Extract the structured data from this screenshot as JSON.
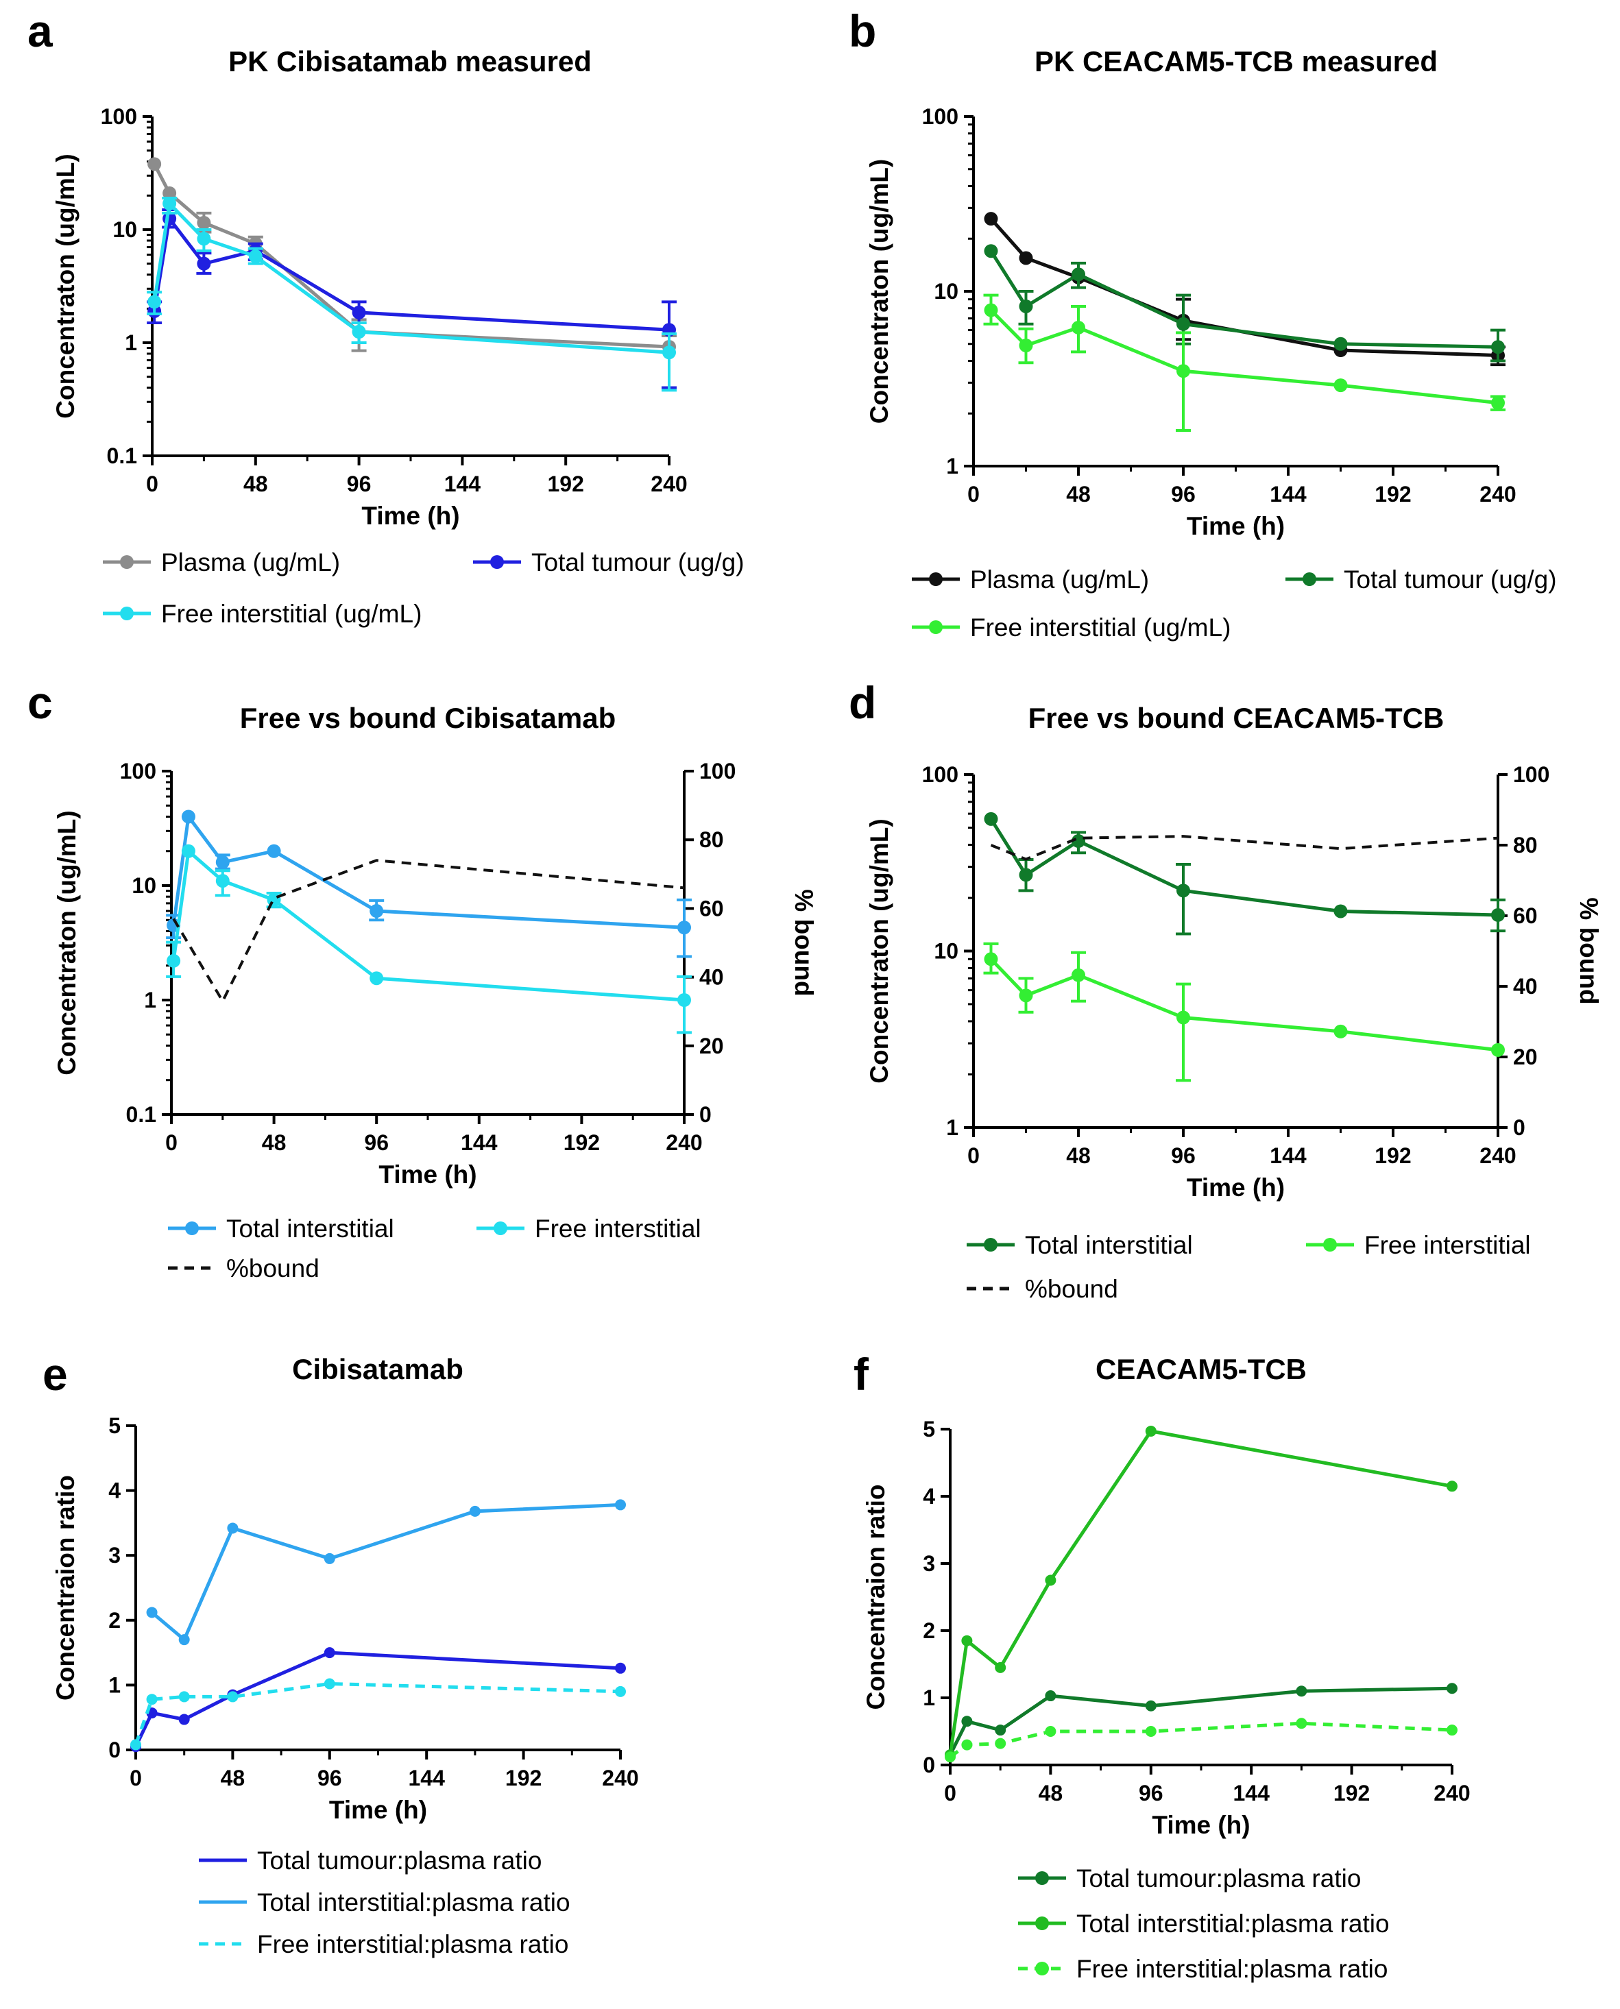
{
  "figure": {
    "panels_letters": [
      "a",
      "b",
      "c",
      "d",
      "e",
      "f"
    ]
  },
  "chart_data": [
    {
      "id": "a",
      "letter": "a",
      "type": "line",
      "title": "PK Cibisatamab measured",
      "xlabel": "Time (h)",
      "ylabel": "Concentraton (ug/mL)",
      "yscale": "log",
      "ylim": [
        0.1,
        100
      ],
      "xlim": [
        0,
        240
      ],
      "xticks": [
        0,
        48,
        96,
        144,
        192,
        240
      ],
      "yticks": [
        0.1,
        1,
        10,
        100
      ],
      "ytick_labels": [
        "0.1",
        "1",
        "10",
        "100"
      ],
      "series": [
        {
          "name": "Plasma (ug/mL)",
          "color": "#8c8c8c",
          "dashed": false,
          "x": [
            1,
            8,
            24,
            48,
            96,
            240
          ],
          "y": [
            38,
            21,
            11.5,
            7.5,
            1.25,
            0.92
          ],
          "err": [
            null,
            null,
            [
              9.5,
              14
            ],
            [
              6.5,
              8.6
            ],
            [
              0.85,
              1.6
            ],
            [
              0.4,
              1.15
            ]
          ]
        },
        {
          "name": "Total tumour (ug/g)",
          "color": "#2020e0",
          "dashed": false,
          "x": [
            1,
            8,
            24,
            48,
            96,
            240
          ],
          "y": [
            1.9,
            12.5,
            5,
            6.5,
            1.85,
            1.3
          ],
          "err": [
            [
              1.5,
              2.3
            ],
            [
              10.5,
              15
            ],
            [
              4.1,
              6.2
            ],
            [
              5.4,
              7.5
            ],
            [
              1.5,
              2.3
            ],
            [
              0.4,
              2.3
            ]
          ]
        },
        {
          "name": "Free interstitial (ug/mL)",
          "color": "#22ddee",
          "dashed": false,
          "x": [
            1,
            8,
            24,
            48,
            96,
            240
          ],
          "y": [
            2.3,
            17,
            8.3,
            5.8,
            1.25,
            0.82
          ],
          "err": [
            [
              1.8,
              2.8
            ],
            [
              14,
              19
            ],
            [
              6.5,
              10
            ],
            [
              5,
              6.8
            ],
            [
              1,
              1.5
            ],
            [
              0.38,
              1.2
            ]
          ]
        }
      ]
    },
    {
      "id": "b",
      "letter": "b",
      "type": "line",
      "title": "PK CEACAM5-TCB measured",
      "xlabel": "Time (h)",
      "ylabel": "Concentraton (ug/mL)",
      "yscale": "log",
      "ylim": [
        1,
        100
      ],
      "xlim": [
        0,
        240
      ],
      "xticks": [
        0,
        48,
        96,
        144,
        192,
        240
      ],
      "yticks": [
        1,
        10,
        100
      ],
      "ytick_labels": [
        "1",
        "10",
        "100"
      ],
      "series": [
        {
          "name": "Plasma (ug/mL)",
          "color": "#111111",
          "dashed": false,
          "x": [
            8,
            24,
            48,
            96,
            168,
            240
          ],
          "y": [
            26,
            15.5,
            12,
            6.8,
            4.6,
            4.3
          ],
          "err": [
            null,
            null,
            null,
            [
              5.3,
              9
            ],
            null,
            [
              3.8,
              4.8
            ]
          ]
        },
        {
          "name": "Total tumour (ug/g)",
          "color": "#107a2a",
          "dashed": false,
          "x": [
            8,
            24,
            48,
            96,
            168,
            240
          ],
          "y": [
            17,
            8.2,
            12.5,
            6.5,
            5,
            4.8
          ],
          "err": [
            null,
            [
              6.5,
              10
            ],
            [
              10.5,
              14.5
            ],
            [
              5,
              9.5
            ],
            null,
            [
              4,
              6
            ]
          ]
        },
        {
          "name": "Free interstitial (ug/mL)",
          "color": "#33ee33",
          "dashed": false,
          "x": [
            8,
            24,
            48,
            96,
            168,
            240
          ],
          "y": [
            7.8,
            4.9,
            6.2,
            3.5,
            2.9,
            2.3
          ],
          "err": [
            [
              6.5,
              9.5
            ],
            [
              3.9,
              6.1
            ],
            [
              4.5,
              8.2
            ],
            [
              1.6,
              5.8
            ],
            null,
            [
              2.1,
              2.5
            ]
          ]
        }
      ]
    },
    {
      "id": "c",
      "letter": "c",
      "type": "line",
      "title": "Free vs bound Cibisatamab",
      "xlabel": "Time (h)",
      "ylabel": "Concentraton (ug/mL)",
      "y2label": "% bound",
      "yscale": "log",
      "ylim": [
        0.1,
        100
      ],
      "xlim": [
        0,
        240
      ],
      "y2lim": [
        0,
        100
      ],
      "xticks": [
        0,
        48,
        96,
        144,
        192,
        240
      ],
      "yticks": [
        0.1,
        1,
        10,
        100
      ],
      "ytick_labels": [
        "0.1",
        "1",
        "10",
        "100"
      ],
      "y2ticks": [
        0,
        20,
        40,
        60,
        80,
        100
      ],
      "series": [
        {
          "name": "Total interstitial",
          "color": "#2fa4ef",
          "dashed": false,
          "x": [
            1,
            8,
            24,
            48,
            96,
            240
          ],
          "y": [
            4.5,
            40,
            16,
            20,
            6,
            4.3
          ],
          "err": [
            [
              3.5,
              5.5
            ],
            null,
            [
              14,
              18.5
            ],
            null,
            [
              5,
              7.4
            ],
            [
              2.4,
              7.5
            ]
          ]
        },
        {
          "name": "Free interstitial",
          "color": "#22ddee",
          "dashed": false,
          "x": [
            1,
            8,
            24,
            48,
            96,
            240
          ],
          "y": [
            2.2,
            20,
            11,
            7.5,
            1.55,
            1.0
          ],
          "err": [
            [
              1.6,
              3.2
            ],
            null,
            [
              8.2,
              13.5
            ],
            [
              6.5,
              8.6
            ],
            null,
            [
              0.52,
              1.6
            ]
          ]
        },
        {
          "name": "%bound",
          "color": "#111111",
          "dashed": true,
          "axis": "y2",
          "x": [
            1,
            24,
            48,
            96,
            240
          ],
          "y": [
            57,
            33,
            63,
            74,
            66
          ],
          "markers": false
        }
      ]
    },
    {
      "id": "d",
      "letter": "d",
      "type": "line",
      "title": "Free vs bound CEACAM5-TCB",
      "xlabel": "Time (h)",
      "ylabel": "Concentraton (ug/mL)",
      "y2label": "% bound",
      "yscale": "log",
      "ylim": [
        1,
        100
      ],
      "xlim": [
        0,
        240
      ],
      "y2lim": [
        0,
        100
      ],
      "xticks": [
        0,
        48,
        96,
        144,
        192,
        240
      ],
      "yticks": [
        1,
        10,
        100
      ],
      "ytick_labels": [
        "1",
        "10",
        "100"
      ],
      "y2ticks": [
        0,
        20,
        40,
        60,
        80,
        100
      ],
      "series": [
        {
          "name": "Total interstitial",
          "color": "#107a2a",
          "dashed": false,
          "x": [
            8,
            24,
            48,
            96,
            168,
            240
          ],
          "y": [
            56,
            27,
            42,
            22,
            16.8,
            16
          ],
          "err": [
            null,
            [
              22,
              33
            ],
            [
              36,
              47
            ],
            [
              12.5,
              31
            ],
            null,
            [
              13,
              19.5
            ]
          ]
        },
        {
          "name": "Free interstitial",
          "color": "#33ee33",
          "dashed": false,
          "x": [
            8,
            24,
            48,
            96,
            168,
            240
          ],
          "y": [
            9,
            5.6,
            7.3,
            4.2,
            3.5,
            2.75
          ],
          "err": [
            [
              7.5,
              11
            ],
            [
              4.5,
              7
            ],
            [
              5.2,
              9.8
            ],
            [
              1.85,
              6.5
            ],
            null,
            null
          ]
        },
        {
          "name": "%bound",
          "color": "#111111",
          "dashed": true,
          "axis": "y2",
          "x": [
            8,
            24,
            48,
            96,
            168,
            240
          ],
          "y": [
            80,
            76,
            82,
            82.5,
            79,
            82
          ],
          "markers": false
        }
      ]
    },
    {
      "id": "e",
      "letter": "e",
      "type": "line",
      "title": "Cibisatamab",
      "xlabel": "Time (h)",
      "ylabel": "Concentraion ratio",
      "yscale": "linear",
      "ylim": [
        0,
        5
      ],
      "xlim": [
        0,
        240
      ],
      "xticks": [
        0,
        48,
        96,
        144,
        192,
        240
      ],
      "yticks": [
        0,
        1,
        2,
        3,
        4,
        5
      ],
      "ytick_labels": [
        "0",
        "1",
        "2",
        "3",
        "4",
        "5"
      ],
      "series": [
        {
          "name": "Total tumour:plasma ratio",
          "color": "#2020e0",
          "dashed": false,
          "marker_r": 8,
          "x": [
            0,
            8,
            24,
            48,
            96,
            240
          ],
          "y": [
            0.05,
            0.57,
            0.47,
            0.85,
            1.5,
            1.26
          ]
        },
        {
          "name": "Total interstitial:plasma ratio",
          "color": "#2fa4ef",
          "dashed": false,
          "marker_r": 8,
          "x": [
            8,
            24,
            48,
            96,
            168,
            240
          ],
          "y": [
            2.12,
            1.7,
            3.42,
            2.95,
            3.68,
            3.78
          ]
        },
        {
          "name": "Free interstitial:plasma ratio",
          "color": "#22ddee",
          "dashed": true,
          "marker_r": 8,
          "x": [
            0,
            8,
            24,
            48,
            96,
            240
          ],
          "y": [
            0.08,
            0.78,
            0.82,
            0.82,
            1.02,
            0.9
          ]
        }
      ]
    },
    {
      "id": "f",
      "letter": "f",
      "type": "line",
      "title": "CEACAM5-TCB",
      "xlabel": "Time (h)",
      "ylabel": "Concentraion ratio",
      "yscale": "linear",
      "ylim": [
        0,
        5
      ],
      "xlim": [
        0,
        240
      ],
      "xticks": [
        0,
        48,
        96,
        144,
        192,
        240
      ],
      "yticks": [
        0,
        1,
        2,
        3,
        4,
        5
      ],
      "ytick_labels": [
        "0",
        "1",
        "2",
        "3",
        "4",
        "5"
      ],
      "series": [
        {
          "name": "Total tumour:plasma ratio",
          "color": "#107a2a",
          "dashed": false,
          "marker_r": 8,
          "x": [
            0,
            8,
            24,
            48,
            96,
            168,
            240
          ],
          "y": [
            0.15,
            0.65,
            0.52,
            1.03,
            0.88,
            1.1,
            1.14
          ]
        },
        {
          "name": "Total interstitial:plasma ratio",
          "color": "#22bb22",
          "dashed": false,
          "marker_r": 8,
          "x": [
            0,
            8,
            24,
            48,
            96,
            240
          ],
          "y": [
            0.15,
            1.85,
            1.45,
            2.75,
            4.97,
            4.15
          ]
        },
        {
          "name": "Free interstitial:plasma ratio",
          "color": "#33ee33",
          "dashed": true,
          "marker_r": 8,
          "x": [
            0,
            8,
            24,
            48,
            96,
            168,
            240
          ],
          "y": [
            0.12,
            0.3,
            0.32,
            0.5,
            0.5,
            0.62,
            0.52
          ]
        }
      ]
    }
  ]
}
